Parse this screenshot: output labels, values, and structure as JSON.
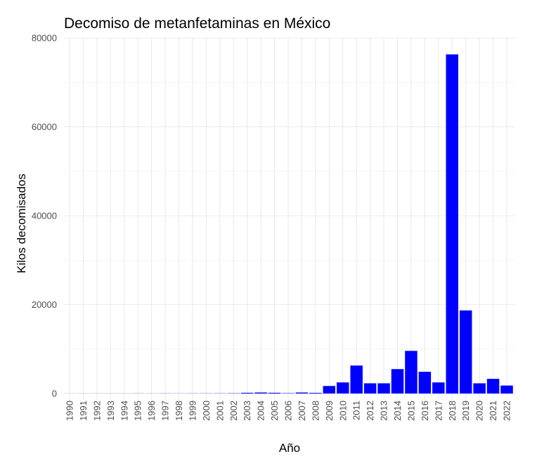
{
  "chart_data": {
    "type": "bar",
    "title": "Decomiso de metanfetaminas en México",
    "xlabel": "Año",
    "ylabel": "Kilos decomisados",
    "categories": [
      "1990",
      "1991",
      "1992",
      "1993",
      "1994",
      "1995",
      "1996",
      "1997",
      "1998",
      "1999",
      "2000",
      "2001",
      "2002",
      "2003",
      "2004",
      "2005",
      "2006",
      "2007",
      "2008",
      "2009",
      "2010",
      "2011",
      "2012",
      "2013",
      "2014",
      "2015",
      "2016",
      "2017",
      "2018",
      "2019",
      "2020",
      "2021",
      "2022"
    ],
    "values": [
      10,
      15,
      20,
      20,
      20,
      25,
      20,
      30,
      25,
      30,
      35,
      40,
      60,
      170,
      230,
      170,
      80,
      230,
      150,
      1700,
      2500,
      6300,
      2300,
      2300,
      5500,
      9600,
      4900,
      2500,
      76300,
      18700,
      2300,
      3300,
      1800
    ],
    "yticks": [
      "0",
      "20000",
      "40000",
      "60000",
      "80000"
    ],
    "ylim": [
      0,
      80000
    ],
    "grid": true,
    "legend": "none",
    "colors": {
      "bar": "#0000ff",
      "grid": "#ebebeb",
      "tick_text": "#4d4d4d",
      "title_text": "#000000"
    }
  }
}
